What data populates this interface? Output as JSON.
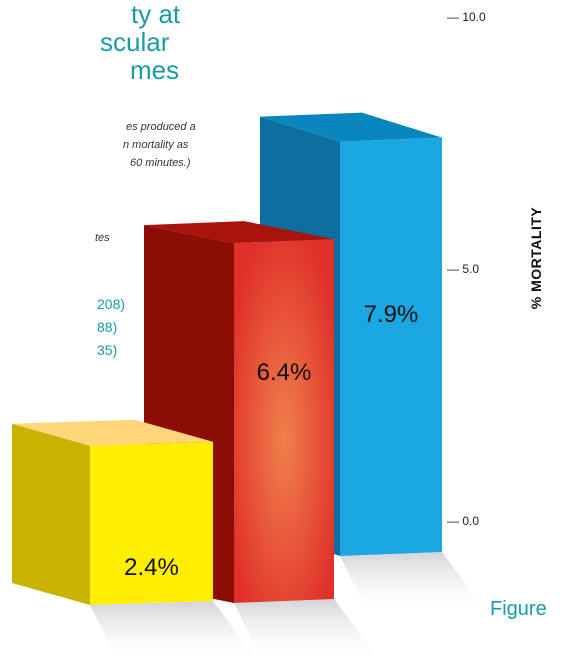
{
  "title_lines": [
    "ty at",
    "scular",
    "mes"
  ],
  "note_lines": [
    "es produced a",
    "n mortality as",
    "60 minutes.)"
  ],
  "sub_lines": [
    "tes"
  ],
  "legend": [
    "208)",
    "88)",
    "35)"
  ],
  "figure_label": "Figure",
  "chart_data": {
    "type": "bar",
    "categories": [
      "",
      "",
      ""
    ],
    "values": [
      2.4,
      6.4,
      7.9
    ],
    "data_labels": [
      "2.4%",
      "6.4%",
      "7.9%"
    ],
    "colors": [
      "#ffee00",
      "#e5322d",
      "#1aa7e2"
    ],
    "ylabel": "% MORTALITY",
    "ylim": [
      0,
      10
    ],
    "yticks": [
      "— 0.0",
      "— 5.0",
      "— 10.0"
    ],
    "grid": false,
    "style": "3d"
  }
}
